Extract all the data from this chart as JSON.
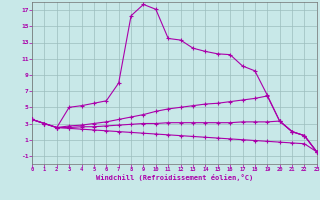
{
  "background_color": "#c8e8e8",
  "grid_color": "#9cbebe",
  "line_color": "#aa00aa",
  "xlabel": "Windchill (Refroidissement éolien,°C)",
  "xlim": [
    0,
    23
  ],
  "ylim": [
    -2,
    18
  ],
  "xticks": [
    0,
    1,
    2,
    3,
    4,
    5,
    6,
    7,
    8,
    9,
    10,
    11,
    12,
    13,
    14,
    15,
    16,
    17,
    18,
    19,
    20,
    21,
    22,
    23
  ],
  "yticks": [
    -1,
    1,
    3,
    5,
    7,
    9,
    11,
    13,
    15,
    17
  ],
  "line1_x": [
    0,
    1,
    2,
    3,
    4,
    5,
    6,
    7,
    8,
    9,
    10,
    11,
    12,
    13,
    14,
    15,
    16,
    17,
    18,
    19,
    20,
    21,
    22,
    23
  ],
  "line1_y": [
    3.5,
    3.0,
    2.5,
    5.0,
    5.2,
    5.5,
    5.8,
    8.0,
    16.3,
    17.7,
    17.1,
    13.5,
    13.3,
    12.3,
    11.9,
    11.6,
    11.5,
    10.1,
    9.5,
    6.5,
    3.3,
    2.0,
    1.5,
    -0.5
  ],
  "line2_x": [
    0,
    1,
    2,
    3,
    4,
    5,
    6,
    7,
    8,
    9,
    10,
    11,
    12,
    13,
    14,
    15,
    16,
    17,
    18,
    19,
    20,
    21,
    22,
    23
  ],
  "line2_y": [
    3.5,
    3.0,
    2.5,
    2.7,
    2.8,
    3.0,
    3.2,
    3.5,
    3.8,
    4.1,
    4.5,
    4.8,
    5.0,
    5.2,
    5.4,
    5.5,
    5.7,
    5.9,
    6.1,
    6.4,
    3.3,
    2.0,
    1.5,
    -0.5
  ],
  "line3_x": [
    0,
    1,
    2,
    3,
    4,
    5,
    6,
    7,
    8,
    9,
    10,
    11,
    12,
    13,
    14,
    15,
    16,
    17,
    18,
    19,
    20,
    21,
    22,
    23
  ],
  "line3_y": [
    3.5,
    3.0,
    2.5,
    2.5,
    2.6,
    2.6,
    2.7,
    2.8,
    2.9,
    3.0,
    3.0,
    3.1,
    3.1,
    3.1,
    3.1,
    3.1,
    3.1,
    3.2,
    3.2,
    3.2,
    3.3,
    2.0,
    1.5,
    -0.5
  ],
  "line4_x": [
    0,
    1,
    2,
    3,
    4,
    5,
    6,
    7,
    8,
    9,
    10,
    11,
    12,
    13,
    14,
    15,
    16,
    17,
    18,
    19,
    20,
    21,
    22,
    23
  ],
  "line4_y": [
    3.5,
    3.0,
    2.5,
    2.4,
    2.3,
    2.2,
    2.1,
    2.0,
    1.9,
    1.8,
    1.7,
    1.6,
    1.5,
    1.4,
    1.3,
    1.2,
    1.1,
    1.0,
    0.9,
    0.8,
    0.7,
    0.6,
    0.5,
    -0.5
  ]
}
